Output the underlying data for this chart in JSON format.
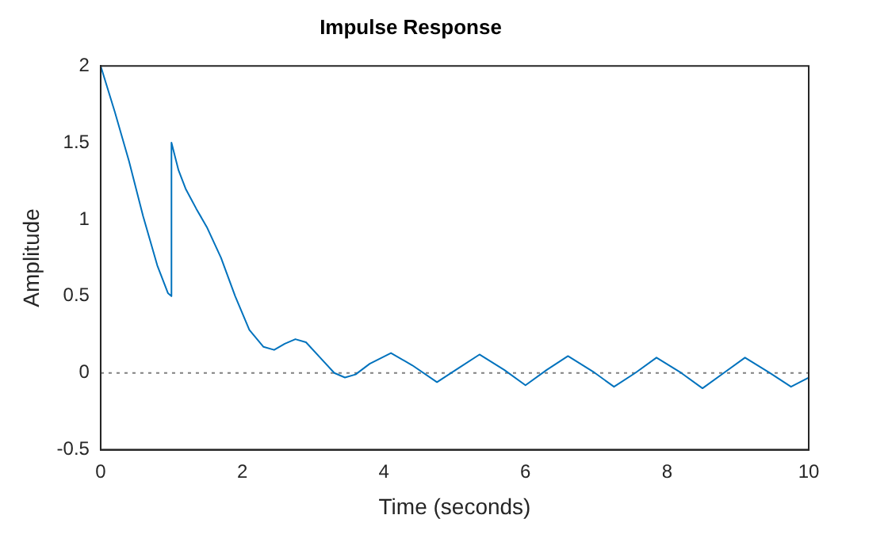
{
  "chart_data": {
    "type": "line",
    "title": "Impulse Response",
    "xlabel": "Time (seconds)",
    "ylabel": "Amplitude",
    "xlim": [
      0,
      10
    ],
    "xticks": [
      0,
      2,
      4,
      6,
      8,
      10
    ],
    "ylim": [
      -0.5,
      2
    ],
    "yticks": [
      -0.5,
      0,
      0.5,
      1,
      1.5,
      2
    ],
    "grid": false,
    "legend": false,
    "series": [
      {
        "color": "#0072bd",
        "x": [
          0,
          0.2,
          0.4,
          0.6,
          0.8,
          0.95,
          1.0,
          1.0,
          1.1,
          1.2,
          1.35,
          1.5,
          1.7,
          1.9,
          2.1,
          2.3,
          2.45,
          2.6,
          2.75,
          2.9,
          3.1,
          3.3,
          3.45,
          3.6,
          3.8,
          4.1,
          4.4,
          4.75,
          5.05,
          5.35,
          5.7,
          6.0,
          6.3,
          6.6,
          6.95,
          7.25,
          7.55,
          7.85,
          8.2,
          8.5,
          8.8,
          9.1,
          9.45,
          9.75,
          10
        ],
        "values": [
          2,
          1.7,
          1.38,
          1.02,
          0.7,
          0.52,
          0.5,
          1.5,
          1.32,
          1.2,
          1.07,
          0.95,
          0.75,
          0.5,
          0.28,
          0.17,
          0.15,
          0.19,
          0.22,
          0.2,
          0.1,
          0.0,
          -0.03,
          -0.01,
          0.06,
          0.13,
          0.05,
          -0.06,
          0.03,
          0.12,
          0.02,
          -0.08,
          0.02,
          0.11,
          0.01,
          -0.09,
          0.0,
          0.1,
          0.0,
          -0.1,
          0.0,
          0.1,
          0.0,
          -0.09,
          -0.03
        ]
      }
    ],
    "ref_lines": [
      {
        "axis": "y",
        "value": 0,
        "color": "#808080",
        "line_style": "dotted"
      }
    ]
  }
}
